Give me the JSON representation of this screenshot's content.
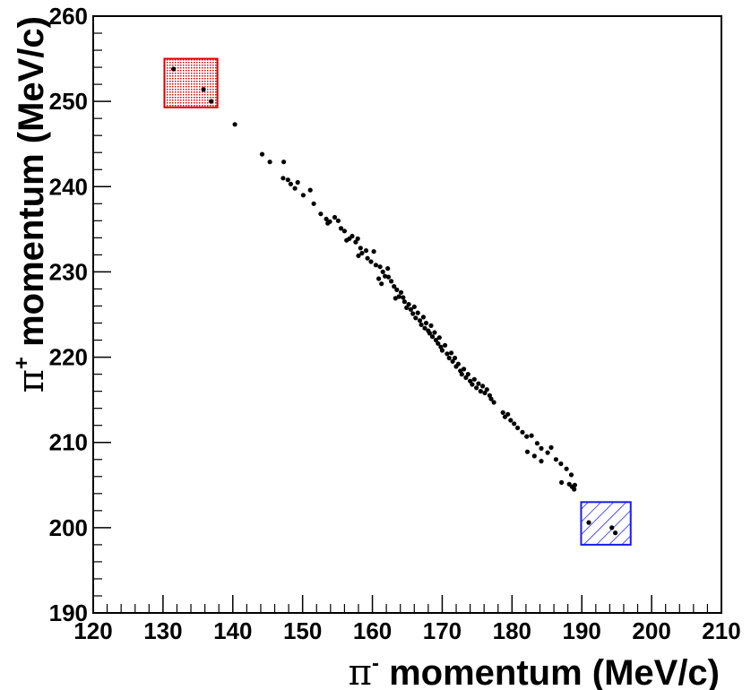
{
  "chart_data": {
    "type": "scatter",
    "title": "",
    "xlabel": {
      "prefix": "π",
      "sup": "-",
      "text": " momentum (MeV/c)"
    },
    "ylabel": {
      "prefix": "π",
      "sup": "+",
      "text": " momentum (MeV/c)"
    },
    "xlim": [
      120,
      210
    ],
    "ylim": [
      190,
      260
    ],
    "xticks": [
      120,
      130,
      140,
      150,
      160,
      170,
      180,
      190,
      200,
      210
    ],
    "yticks": [
      190,
      200,
      210,
      220,
      230,
      240,
      250,
      260
    ],
    "grid": false,
    "point_color": "#000000",
    "boxes": [
      {
        "name": "red-region",
        "x": [
          130.2,
          137.8
        ],
        "y": [
          249.3,
          255.0
        ],
        "color": "#dd0000",
        "fill": "dotted"
      },
      {
        "name": "blue-region",
        "x": [
          189.9,
          197.0
        ],
        "y": [
          198.0,
          203.0
        ],
        "color": "#1a1aee",
        "fill": "hatched"
      }
    ],
    "points": [
      [
        131.5,
        253.8
      ],
      [
        135.8,
        251.4
      ],
      [
        136.9,
        250.0
      ],
      [
        140.3,
        247.3
      ],
      [
        144.2,
        243.8
      ],
      [
        145.3,
        242.9
      ],
      [
        147.3,
        242.9
      ],
      [
        147.2,
        241.0
      ],
      [
        147.9,
        240.8
      ],
      [
        148.3,
        240.3
      ],
      [
        149.3,
        240.5
      ],
      [
        148.9,
        239.8
      ],
      [
        150.1,
        239.0
      ],
      [
        151.1,
        239.6
      ],
      [
        151.6,
        238.0
      ],
      [
        152.6,
        236.8
      ],
      [
        153.4,
        236.2
      ],
      [
        153.9,
        235.9
      ],
      [
        154.6,
        236.4
      ],
      [
        155.1,
        236.0
      ],
      [
        155.5,
        235.1
      ],
      [
        153.6,
        235.7
      ],
      [
        156.0,
        234.8
      ],
      [
        156.3,
        233.7
      ],
      [
        156.7,
        233.9
      ],
      [
        157.1,
        234.2
      ],
      [
        157.6,
        233.5
      ],
      [
        157.9,
        233.9
      ],
      [
        158.3,
        232.8
      ],
      [
        158.5,
        232.2
      ],
      [
        158.0,
        231.9
      ],
      [
        159.1,
        232.5
      ],
      [
        159.3,
        231.6
      ],
      [
        159.8,
        231.2
      ],
      [
        160.2,
        232.4
      ],
      [
        160.5,
        230.8
      ],
      [
        161.1,
        230.6
      ],
      [
        161.5,
        230.0
      ],
      [
        161.8,
        229.5
      ],
      [
        162.2,
        230.4
      ],
      [
        162.3,
        229.4
      ],
      [
        160.9,
        229.2
      ],
      [
        161.3,
        228.6
      ],
      [
        162.7,
        228.9
      ],
      [
        163.1,
        228.3
      ],
      [
        163.5,
        227.9
      ],
      [
        163.8,
        227.1
      ],
      [
        164.1,
        227.6
      ],
      [
        164.4,
        227.0
      ],
      [
        164.6,
        226.5
      ],
      [
        164.9,
        225.8
      ],
      [
        163.3,
        226.9
      ],
      [
        165.2,
        226.2
      ],
      [
        165.5,
        225.6
      ],
      [
        165.8,
        225.1
      ],
      [
        166.0,
        225.9
      ],
      [
        166.2,
        224.6
      ],
      [
        166.5,
        225.2
      ],
      [
        166.8,
        224.3
      ],
      [
        167.0,
        223.8
      ],
      [
        167.3,
        224.7
      ],
      [
        167.5,
        223.4
      ],
      [
        167.7,
        224.0
      ],
      [
        168.0,
        223.1
      ],
      [
        168.2,
        222.8
      ],
      [
        168.4,
        223.7
      ],
      [
        168.6,
        222.4
      ],
      [
        168.9,
        222.9
      ],
      [
        169.1,
        222.0
      ],
      [
        169.4,
        221.6
      ],
      [
        169.6,
        222.3
      ],
      [
        169.8,
        221.2
      ],
      [
        170.0,
        220.8
      ],
      [
        170.4,
        221.4
      ],
      [
        170.7,
        220.4
      ],
      [
        171.0,
        219.9
      ],
      [
        171.3,
        220.5
      ],
      [
        171.5,
        219.5
      ],
      [
        171.8,
        219.9
      ],
      [
        172.0,
        218.9
      ],
      [
        172.3,
        219.2
      ],
      [
        172.6,
        218.4
      ],
      [
        172.8,
        218.0
      ],
      [
        173.1,
        218.6
      ],
      [
        173.4,
        217.6
      ],
      [
        173.7,
        218.0
      ],
      [
        174.0,
        217.2
      ],
      [
        174.3,
        216.8
      ],
      [
        174.6,
        217.4
      ],
      [
        174.9,
        216.4
      ],
      [
        175.2,
        216.9
      ],
      [
        175.5,
        216.0
      ],
      [
        175.8,
        216.6
      ],
      [
        176.1,
        215.8
      ],
      [
        176.4,
        216.2
      ],
      [
        176.8,
        215.5
      ],
      [
        177.0,
        215.1
      ],
      [
        177.4,
        214.7
      ],
      [
        178.7,
        213.5
      ],
      [
        179.0,
        213.0
      ],
      [
        179.4,
        213.3
      ],
      [
        179.8,
        212.6
      ],
      [
        180.3,
        212.2
      ],
      [
        180.8,
        211.7
      ],
      [
        181.5,
        211.2
      ],
      [
        182.1,
        210.7
      ],
      [
        182.8,
        210.8
      ],
      [
        183.6,
        209.9
      ],
      [
        184.2,
        209.3
      ],
      [
        185.1,
        208.8
      ],
      [
        185.6,
        209.4
      ],
      [
        186.3,
        208.0
      ],
      [
        187.0,
        207.5
      ],
      [
        187.8,
        206.9
      ],
      [
        188.5,
        206.2
      ],
      [
        182.2,
        208.9
      ],
      [
        183.2,
        208.4
      ],
      [
        184.2,
        207.8
      ],
      [
        187.1,
        205.3
      ],
      [
        188.2,
        205.1
      ],
      [
        188.6,
        204.8
      ],
      [
        188.9,
        204.5
      ],
      [
        189.0,
        205.0
      ],
      [
        191.0,
        200.6
      ],
      [
        194.3,
        200.0
      ],
      [
        194.8,
        199.4
      ]
    ]
  }
}
